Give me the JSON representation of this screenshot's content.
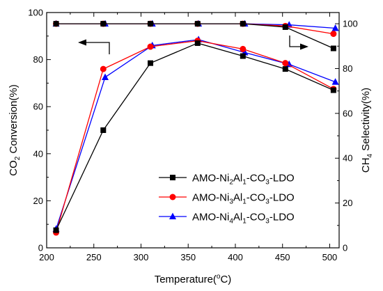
{
  "chart_data": {
    "type": "line",
    "xlabel": "Temperature(°C)",
    "xlabel_parts": [
      "Temperature(",
      "o",
      "C)"
    ],
    "ylabel_left": "CO2 Conversion(%)",
    "ylabel_left_parts": [
      "CO",
      "2",
      " Conversion(%)"
    ],
    "ylabel_right": "CH4 Selectivity(%)",
    "ylabel_right_parts": [
      "CH",
      "4",
      "  Selectivity(%)"
    ],
    "xlim": [
      200,
      510
    ],
    "ylim_left": [
      0,
      100
    ],
    "ylim_right": [
      0,
      105
    ],
    "x_ticks": [
      "200",
      "250",
      "300",
      "350",
      "400",
      "450",
      "500"
    ],
    "y_left_ticks": [
      "0",
      "20",
      "40",
      "60",
      "80",
      "100"
    ],
    "y_right_ticks": [
      "0",
      "20",
      "40",
      "60",
      "80",
      "100"
    ],
    "legend_position": "center-right",
    "series": [
      {
        "name": "AMO-Ni2Al1-CO3-LDO",
        "name_parts": [
          [
            "AMO-Ni",
            false
          ],
          [
            "2",
            true
          ],
          [
            "Al",
            false
          ],
          [
            "1",
            true
          ],
          [
            "-CO",
            false
          ],
          [
            "3",
            true
          ],
          [
            "-LDO",
            false
          ]
        ],
        "color": "#000000",
        "marker": "square",
        "conversion": [
          [
            210,
            7.5
          ],
          [
            260,
            50
          ],
          [
            310,
            78.5
          ],
          [
            360,
            87
          ],
          [
            408,
            81.5
          ],
          [
            453,
            76
          ],
          [
            504,
            67
          ]
        ],
        "selectivity": [
          [
            210,
            100
          ],
          [
            260,
            100
          ],
          [
            310,
            100
          ],
          [
            360,
            100
          ],
          [
            408,
            100
          ],
          [
            453,
            98.5
          ],
          [
            504,
            89
          ]
        ]
      },
      {
        "name": "AMO-Ni3Al1-CO3-LDO",
        "name_parts": [
          [
            "AMO-Ni",
            false
          ],
          [
            "3",
            true
          ],
          [
            "Al",
            false
          ],
          [
            "1",
            true
          ],
          [
            "-CO",
            false
          ],
          [
            "3",
            true
          ],
          [
            "-LDO",
            false
          ]
        ],
        "color": "#ff0000",
        "marker": "circle",
        "conversion": [
          [
            210,
            6.5
          ],
          [
            260,
            76
          ],
          [
            310,
            85.5
          ],
          [
            360,
            88
          ],
          [
            408,
            84.5
          ],
          [
            453,
            78.5
          ],
          [
            504,
            67.5
          ]
        ],
        "selectivity": [
          [
            210,
            100
          ],
          [
            260,
            100
          ],
          [
            310,
            100
          ],
          [
            360,
            100
          ],
          [
            408,
            100
          ],
          [
            453,
            99
          ],
          [
            504,
            95.5
          ]
        ]
      },
      {
        "name": "AMO-Ni4Al1-CO3-LDO",
        "name_parts": [
          [
            "AMO-Ni",
            false
          ],
          [
            "4",
            true
          ],
          [
            "Al",
            false
          ],
          [
            "1",
            true
          ],
          [
            "-CO",
            false
          ],
          [
            "3",
            true
          ],
          [
            "-LDO",
            false
          ]
        ],
        "color": "#0000ff",
        "marker": "triangle",
        "conversion": [
          [
            210,
            8
          ],
          [
            262,
            72.5
          ],
          [
            312,
            86
          ],
          [
            361,
            88.5
          ],
          [
            410,
            83
          ],
          [
            457,
            78
          ],
          [
            506,
            70.5
          ]
        ],
        "selectivity": [
          [
            210,
            100
          ],
          [
            262,
            100
          ],
          [
            312,
            100
          ],
          [
            361,
            100
          ],
          [
            410,
            100
          ],
          [
            457,
            99.5
          ],
          [
            506,
            98
          ]
        ]
      }
    ]
  }
}
